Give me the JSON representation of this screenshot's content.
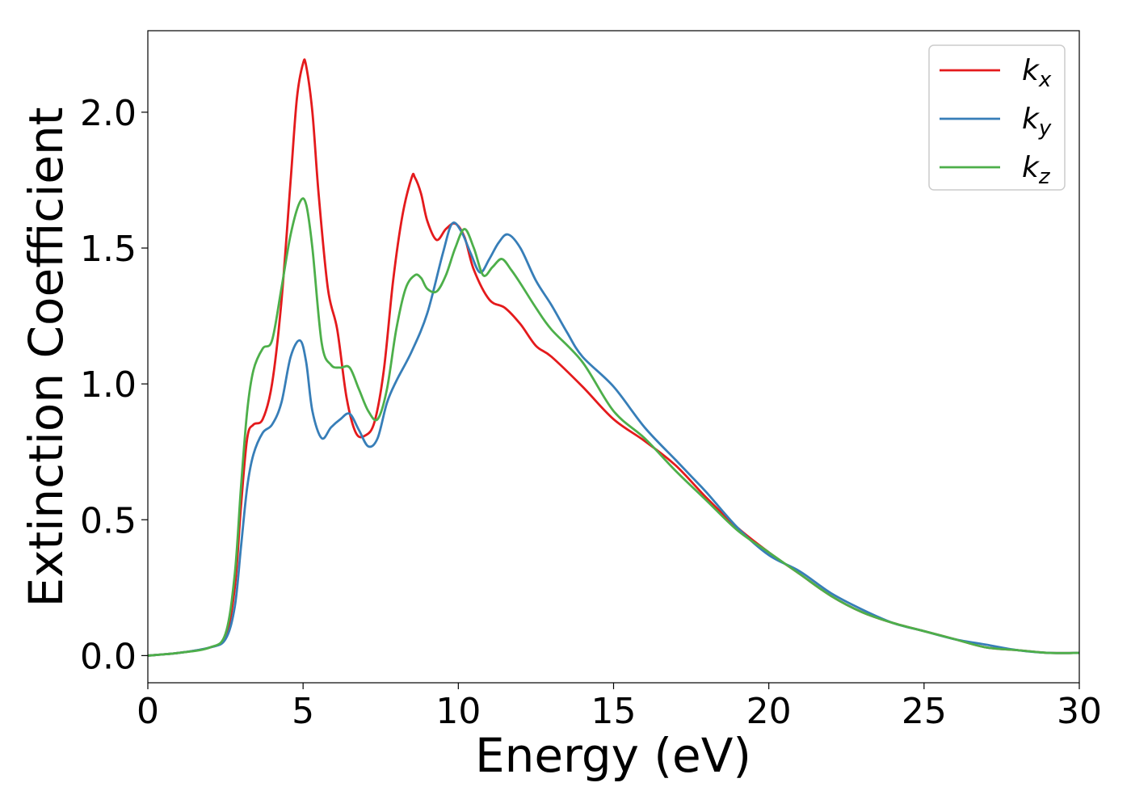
{
  "chart_data": {
    "type": "line",
    "title": "",
    "xlabel": "Energy (eV)",
    "ylabel": "Extinction Coefficient",
    "xlim": [
      0,
      30
    ],
    "ylim": [
      -0.1,
      2.3
    ],
    "xticks": [
      0,
      5,
      10,
      15,
      20,
      25,
      30
    ],
    "xtick_labels": [
      "0",
      "5",
      "10",
      "15",
      "20",
      "25",
      "30"
    ],
    "yticks": [
      0.0,
      0.5,
      1.0,
      1.5,
      2.0
    ],
    "ytick_labels": [
      "0.0",
      "0.5",
      "1.0",
      "1.5",
      "2.0"
    ],
    "grid": false,
    "legend_position": "top-right",
    "series": [
      {
        "name": "k_x",
        "legend_base": "k",
        "legend_sub": "x",
        "color": "#e41a1c",
        "x": [
          0,
          1,
          2,
          2.5,
          2.8,
          3.0,
          3.2,
          3.4,
          3.7,
          4.0,
          4.3,
          4.6,
          4.8,
          5.0,
          5.1,
          5.3,
          5.5,
          5.8,
          6.1,
          6.4,
          6.7,
          7.0,
          7.3,
          7.6,
          7.9,
          8.2,
          8.5,
          8.6,
          8.8,
          9.0,
          9.3,
          9.6,
          9.9,
          10.2,
          10.5,
          11.0,
          11.5,
          12.0,
          12.5,
          13.0,
          14.0,
          15.0,
          16.0,
          17.0,
          18.0,
          19.0,
          20.0,
          21.0,
          22.0,
          23.0,
          24.0,
          25.0,
          26.0,
          27.0,
          28.0,
          29.0,
          30.0
        ],
        "y": [
          0.0,
          0.01,
          0.03,
          0.07,
          0.25,
          0.55,
          0.8,
          0.85,
          0.87,
          1.0,
          1.3,
          1.75,
          2.05,
          2.18,
          2.17,
          2.0,
          1.7,
          1.35,
          1.2,
          0.95,
          0.82,
          0.81,
          0.86,
          1.05,
          1.38,
          1.62,
          1.76,
          1.76,
          1.7,
          1.6,
          1.53,
          1.57,
          1.59,
          1.54,
          1.42,
          1.31,
          1.28,
          1.22,
          1.14,
          1.1,
          0.99,
          0.87,
          0.79,
          0.7,
          0.58,
          0.47,
          0.38,
          0.3,
          0.22,
          0.16,
          0.12,
          0.09,
          0.06,
          0.03,
          0.02,
          0.01,
          0.01
        ]
      },
      {
        "name": "k_y",
        "legend_base": "k",
        "legend_sub": "y",
        "color": "#377eb8",
        "x": [
          0,
          1,
          2,
          2.5,
          2.8,
          3.0,
          3.2,
          3.4,
          3.7,
          4.0,
          4.3,
          4.6,
          4.9,
          5.1,
          5.3,
          5.6,
          5.9,
          6.2,
          6.5,
          6.8,
          7.1,
          7.4,
          7.7,
          8.0,
          8.5,
          9.0,
          9.5,
          9.8,
          10.1,
          10.4,
          10.7,
          11.0,
          11.3,
          11.6,
          12.0,
          12.5,
          13.0,
          13.5,
          14.0,
          15.0,
          16.0,
          17.0,
          17.5,
          18.0,
          19.0,
          20.0,
          21.0,
          22.0,
          23.0,
          24.0,
          25.0,
          26.0,
          27.0,
          28.0,
          29.0,
          30.0
        ],
        "y": [
          0.0,
          0.01,
          0.03,
          0.06,
          0.18,
          0.4,
          0.62,
          0.74,
          0.82,
          0.85,
          0.93,
          1.1,
          1.16,
          1.08,
          0.9,
          0.8,
          0.84,
          0.87,
          0.89,
          0.83,
          0.77,
          0.8,
          0.93,
          1.01,
          1.12,
          1.26,
          1.48,
          1.59,
          1.56,
          1.48,
          1.41,
          1.46,
          1.52,
          1.55,
          1.5,
          1.38,
          1.29,
          1.19,
          1.1,
          0.99,
          0.84,
          0.72,
          0.66,
          0.6,
          0.47,
          0.37,
          0.31,
          0.23,
          0.17,
          0.12,
          0.09,
          0.06,
          0.04,
          0.02,
          0.01,
          0.01
        ]
      },
      {
        "name": "k_z",
        "legend_base": "k",
        "legend_sub": "z",
        "color": "#4daf4a",
        "x": [
          0,
          1,
          2,
          2.5,
          2.8,
          3.0,
          3.2,
          3.4,
          3.7,
          4.0,
          4.3,
          4.6,
          4.9,
          5.1,
          5.3,
          5.6,
          5.9,
          6.2,
          6.5,
          6.8,
          7.1,
          7.4,
          7.7,
          8.0,
          8.3,
          8.6,
          8.8,
          9.0,
          9.3,
          9.6,
          9.9,
          10.2,
          10.5,
          10.8,
          11.1,
          11.4,
          11.7,
          12.0,
          12.5,
          13.0,
          14.0,
          15.0,
          16.0,
          17.0,
          18.0,
          19.0,
          20.0,
          21.0,
          22.0,
          23.0,
          24.0,
          25.0,
          26.0,
          27.0,
          28.0,
          29.0,
          30.0
        ],
        "y": [
          0.0,
          0.01,
          0.03,
          0.08,
          0.3,
          0.62,
          0.9,
          1.05,
          1.13,
          1.16,
          1.35,
          1.55,
          1.67,
          1.66,
          1.5,
          1.15,
          1.07,
          1.06,
          1.06,
          0.98,
          0.9,
          0.87,
          0.98,
          1.2,
          1.35,
          1.4,
          1.39,
          1.35,
          1.34,
          1.4,
          1.5,
          1.57,
          1.5,
          1.4,
          1.43,
          1.46,
          1.42,
          1.37,
          1.28,
          1.2,
          1.08,
          0.9,
          0.8,
          0.68,
          0.57,
          0.46,
          0.38,
          0.3,
          0.22,
          0.16,
          0.12,
          0.09,
          0.06,
          0.03,
          0.02,
          0.01,
          0.01
        ]
      }
    ]
  }
}
